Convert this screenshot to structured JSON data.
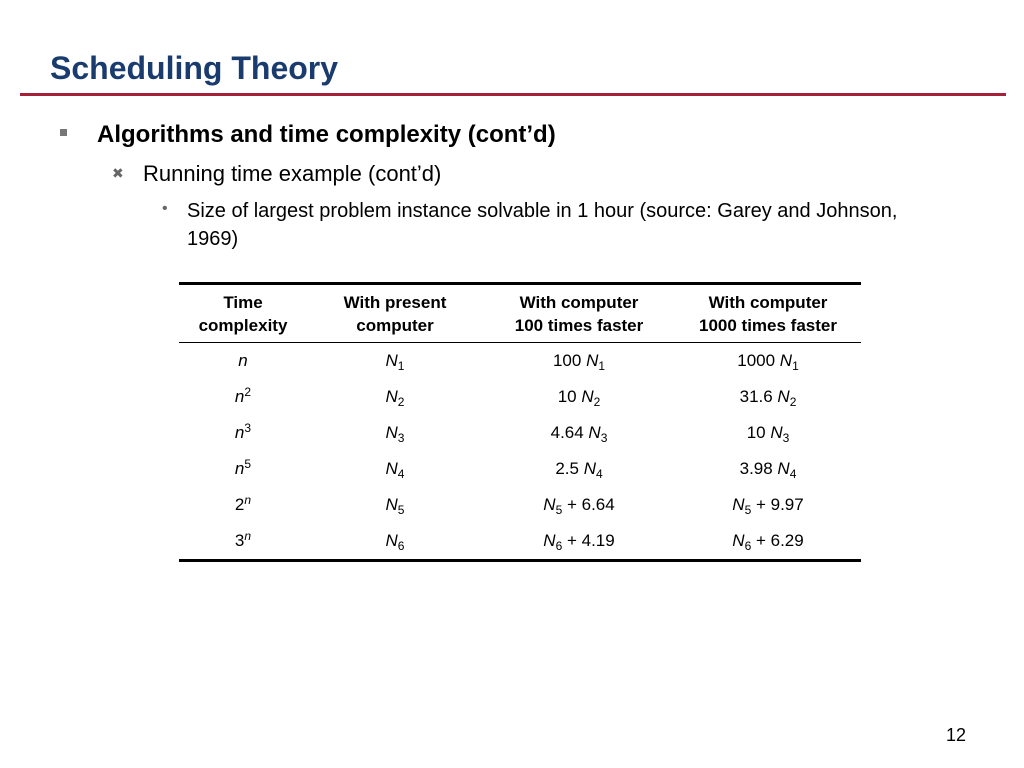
{
  "slide": {
    "title": "Scheduling Theory",
    "page_number": "12"
  },
  "bullets": {
    "level1": {
      "marker": "■",
      "text": "Algorithms and time complexity (cont’d)"
    },
    "level2": {
      "marker": "✖",
      "text": "Running time example (cont’d)"
    },
    "level3": {
      "marker": "•",
      "text": "Size of largest problem instance solvable in 1 hour (source: Garey and Johnson, 1969)"
    }
  },
  "table": {
    "headers": [
      [
        "Time",
        "complexity"
      ],
      [
        "With present",
        "computer"
      ],
      [
        "With computer",
        "100 times faster"
      ],
      [
        "With computer",
        "1000 times faster"
      ]
    ],
    "rows": [
      {
        "complexity": {
          "base": "n",
          "sup": ""
        },
        "present": {
          "var": "N",
          "sub": "1"
        },
        "x100": {
          "prefix": "100 ",
          "var": "N",
          "sub": "1",
          "suffix": ""
        },
        "x1000": {
          "prefix": "1000 ",
          "var": "N",
          "sub": "1",
          "suffix": ""
        }
      },
      {
        "complexity": {
          "base": "n",
          "sup": "2"
        },
        "present": {
          "var": "N",
          "sub": "2"
        },
        "x100": {
          "prefix": "10 ",
          "var": "N",
          "sub": "2",
          "suffix": ""
        },
        "x1000": {
          "prefix": "31.6 ",
          "var": "N",
          "sub": "2",
          "suffix": ""
        }
      },
      {
        "complexity": {
          "base": "n",
          "sup": "3"
        },
        "present": {
          "var": "N",
          "sub": "3"
        },
        "x100": {
          "prefix": "4.64 ",
          "var": "N",
          "sub": "3",
          "suffix": ""
        },
        "x1000": {
          "prefix": "10 ",
          "var": "N",
          "sub": "3",
          "suffix": ""
        }
      },
      {
        "complexity": {
          "base": "n",
          "sup": "5"
        },
        "present": {
          "var": "N",
          "sub": "4"
        },
        "x100": {
          "prefix": "2.5 ",
          "var": "N",
          "sub": "4",
          "suffix": ""
        },
        "x1000": {
          "prefix": "3.98 ",
          "var": "N",
          "sub": "4",
          "suffix": ""
        }
      },
      {
        "complexity": {
          "base": "2",
          "sup": "n"
        },
        "present": {
          "var": "N",
          "sub": "5"
        },
        "x100": {
          "prefix": "",
          "var": "N",
          "sub": "5",
          "suffix": " + 6.64"
        },
        "x1000": {
          "prefix": "",
          "var": "N",
          "sub": "5",
          "suffix": " + 9.97"
        }
      },
      {
        "complexity": {
          "base": "3",
          "sup": "n"
        },
        "present": {
          "var": "N",
          "sub": "6"
        },
        "x100": {
          "prefix": "",
          "var": "N",
          "sub": "6",
          "suffix": " + 4.19"
        },
        "x1000": {
          "prefix": "",
          "var": "N",
          "sub": "6",
          "suffix": " + 6.29"
        }
      }
    ]
  },
  "colors": {
    "title": "#1a3b6e",
    "rule": "#a5213a"
  }
}
